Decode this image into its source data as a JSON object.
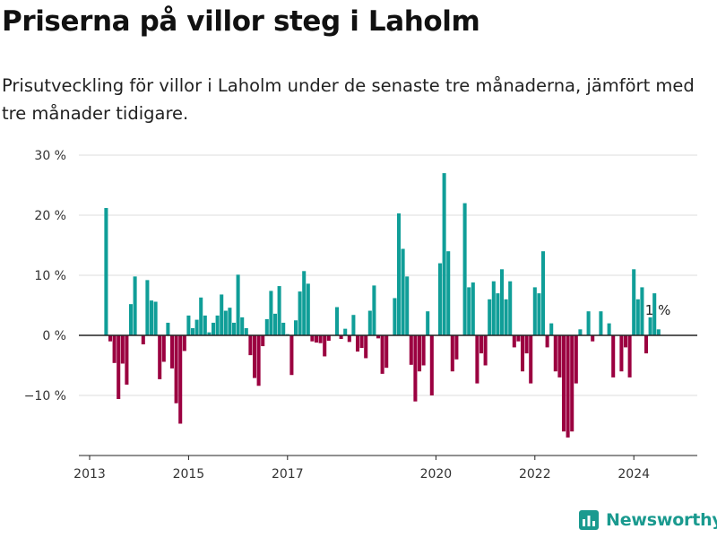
{
  "header": {
    "title": "Priserna på villor steg i Laholm",
    "subtitle": "Prisutveckling för villor i Laholm under de senaste tre månaderna, jämfört med tre månader tidigare."
  },
  "brand": {
    "name": "Newsworthy",
    "icon": "newsworthy-logo-icon"
  },
  "colors": {
    "positive": "#109e98",
    "negative": "#9b0040",
    "zero_line": "#222222",
    "grid": "#dddddd"
  },
  "chart_data": {
    "type": "bar",
    "title": "Priserna på villor steg i Laholm",
    "xlabel": "",
    "ylabel": "",
    "ylim": [
      -20,
      30
    ],
    "y_ticks": [
      {
        "value": 30,
        "label": "30 %"
      },
      {
        "value": 20,
        "label": "20 %"
      },
      {
        "value": 10,
        "label": "10 %"
      },
      {
        "value": 0,
        "label": "0 %"
      },
      {
        "value": -10,
        "label": "−10 %"
      }
    ],
    "x_ticks": [
      {
        "date": "2013-01",
        "label": "2013"
      },
      {
        "date": "2015-01",
        "label": "2015"
      },
      {
        "date": "2017-01",
        "label": "2017"
      },
      {
        "date": "2020-01",
        "label": "2020"
      },
      {
        "date": "2022-01",
        "label": "2022"
      },
      {
        "date": "2024-01",
        "label": "2024"
      }
    ],
    "grid": "horizontal",
    "last_value_label": "1 %",
    "months": [
      "2013-05",
      "2013-06",
      "2013-07",
      "2013-08",
      "2013-09",
      "2013-10",
      "2013-11",
      "2013-12",
      "2014-01",
      "2014-02",
      "2014-03",
      "2014-04",
      "2014-05",
      "2014-06",
      "2014-07",
      "2014-08",
      "2014-09",
      "2014-10",
      "2014-11",
      "2014-12",
      "2015-01",
      "2015-02",
      "2015-03",
      "2015-04",
      "2015-05",
      "2015-06",
      "2015-07",
      "2015-08",
      "2015-09",
      "2015-10",
      "2015-11",
      "2015-12",
      "2016-01",
      "2016-02",
      "2016-03",
      "2016-04",
      "2016-05",
      "2016-06",
      "2016-07",
      "2016-08",
      "2016-09",
      "2016-10",
      "2016-11",
      "2016-12",
      "2017-01",
      "2017-02",
      "2017-03",
      "2017-04",
      "2017-05",
      "2017-06",
      "2017-07",
      "2017-08",
      "2017-09",
      "2017-10",
      "2017-11",
      "2017-12",
      "2018-01",
      "2018-02",
      "2018-03",
      "2018-04",
      "2018-05",
      "2018-06",
      "2018-07",
      "2018-08",
      "2018-09",
      "2018-10",
      "2018-11",
      "2018-12",
      "2019-01",
      "2019-02",
      "2019-03",
      "2019-04",
      "2019-05",
      "2019-06",
      "2019-07",
      "2019-08",
      "2019-09",
      "2019-10",
      "2019-11",
      "2019-12",
      "2020-01",
      "2020-02",
      "2020-03",
      "2020-04",
      "2020-05",
      "2020-06",
      "2020-07",
      "2020-08",
      "2020-09",
      "2020-10",
      "2020-11",
      "2020-12",
      "2021-01",
      "2021-02",
      "2021-03",
      "2021-04",
      "2021-05",
      "2021-06",
      "2021-07",
      "2021-08",
      "2021-09",
      "2021-10",
      "2021-11",
      "2021-12",
      "2022-01",
      "2022-02",
      "2022-03",
      "2022-04",
      "2022-05",
      "2022-06",
      "2022-07",
      "2022-08",
      "2022-09",
      "2022-10",
      "2022-11",
      "2022-12",
      "2023-01",
      "2023-02",
      "2023-03",
      "2023-04",
      "2023-05",
      "2023-06",
      "2023-07",
      "2023-08",
      "2023-09",
      "2023-10",
      "2023-11",
      "2023-12",
      "2024-01",
      "2024-02",
      "2024-03",
      "2024-04",
      "2024-05",
      "2024-06",
      "2024-07"
    ],
    "values": [
      21.2,
      -1,
      -4.6,
      -10.6,
      -4.7,
      -8.2,
      5.2,
      9.8,
      0,
      -1.5,
      9.2,
      5.8,
      5.6,
      -7.3,
      -4.4,
      2.1,
      -5.5,
      -11.3,
      -14.7,
      -2.6,
      3.3,
      1.2,
      2.6,
      6.3,
      3.3,
      0.5,
      2.1,
      3.3,
      6.8,
      4.1,
      4.6,
      2.1,
      10.1,
      3.0,
      1.2,
      -3.3,
      -7.1,
      -8.4,
      -1.8,
      2.7,
      7.4,
      3.6,
      8.2,
      2.1,
      0.2,
      -6.6,
      2.5,
      7.3,
      10.7,
      8.6,
      -1.0,
      -1.2,
      -1.3,
      -3.5,
      -0.9,
      0,
      4.7,
      -0.6,
      1.1,
      -1.1,
      3.4,
      -2.7,
      -2.1,
      -3.8,
      4.1,
      8.3,
      -0.5,
      -6.4,
      -5.4,
      0,
      6.2,
      20.3,
      14.4,
      9.8,
      -4.9,
      -11.0,
      -6.0,
      -5.0,
      4.0,
      -10.0,
      0,
      12.0,
      27.0,
      14.0,
      -6.0,
      -4.0,
      0,
      22.0,
      8.0,
      8.8,
      -8.0,
      -3.0,
      -5.0,
      6.0,
      9.0,
      7.0,
      11.0,
      6.0,
      9.0,
      -2.0,
      -1.0,
      -6.0,
      -3.0,
      -8.0,
      8.0,
      7.0,
      14.0,
      -2.0,
      2.0,
      -6.0,
      -7.0,
      -16.0,
      -17.0,
      -16.0,
      -8.0,
      1.0,
      0,
      4.0,
      -1.0,
      0,
      4.0,
      0,
      2.0,
      -7.0,
      0,
      -6.0,
      -2.0,
      -7.0,
      11.0,
      6.0,
      8.0,
      -3.0,
      3.0,
      7.0,
      1.0
    ]
  }
}
